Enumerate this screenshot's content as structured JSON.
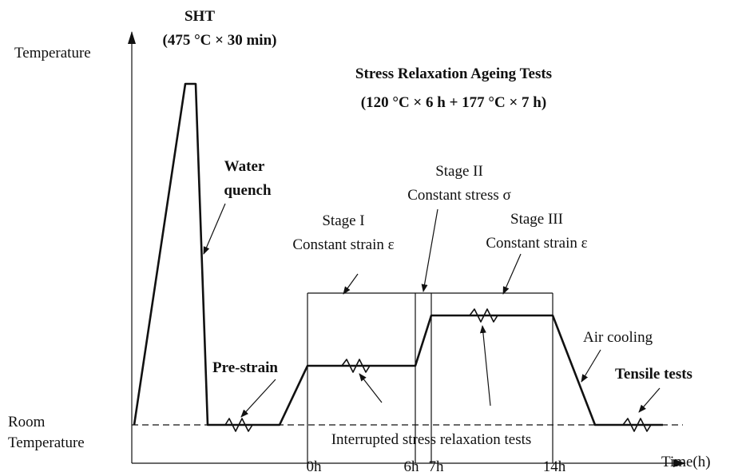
{
  "axes": {
    "y_label": "Temperature",
    "x_label": "Time(h)",
    "room_temperature": [
      "Room",
      "Temperature"
    ]
  },
  "sht": [
    "SHT",
    "(475 °C × 30 min)"
  ],
  "title": [
    "Stress Relaxation Ageing Tests",
    "(120 °C × 6 h + 177 °C × 7 h)"
  ],
  "water_quench": [
    "Water",
    "quench"
  ],
  "pre_strain": "Pre-strain",
  "stages": [
    {
      "name": "Stage I",
      "desc": "Constant strain ε"
    },
    {
      "name": "Stage II",
      "desc": "Constant stress σ"
    },
    {
      "name": "Stage III",
      "desc": "Constant strain ε"
    }
  ],
  "air_cooling": "Air cooling",
  "tensile_tests": "Tensile tests",
  "interrupted": "Interrupted stress relaxation tests",
  "time_ticks": [
    "0h",
    "6h",
    "7h",
    "14h"
  ]
}
